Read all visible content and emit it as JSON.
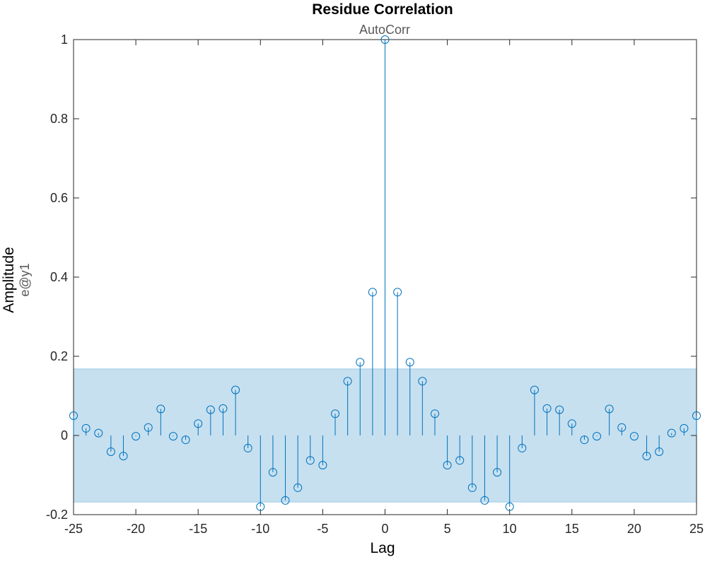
{
  "chart_data": {
    "type": "stem",
    "title": "Residue Correlation",
    "subtitle": "AutoCorr",
    "xlabel": "Lag",
    "ylabel": "Amplitude",
    "ylabel_sub": "e@y1",
    "xlim": [
      -25,
      25
    ],
    "ylim": [
      -0.2,
      1
    ],
    "xticks": [
      -25,
      -20,
      -15,
      -10,
      -5,
      0,
      5,
      10,
      15,
      20,
      25
    ],
    "xtick_labels": [
      "-25",
      "-20",
      "-15",
      "-10",
      "-5",
      "0",
      "5",
      "10",
      "15",
      "20",
      "25"
    ],
    "yticks": [
      -0.2,
      0,
      0.2,
      0.4,
      0.6,
      0.8,
      1
    ],
    "ytick_labels": [
      "-0.2",
      "0",
      "0.2",
      "0.4",
      "0.6",
      "0.8",
      "1"
    ],
    "grid": false,
    "confidence_band": [
      -0.168,
      0.168
    ],
    "colors": {
      "stem": "#0072BD",
      "band_fill": "#C6E0F0",
      "band_edge": "#9CC8E6",
      "axes": "#262626"
    },
    "series": [
      {
        "x": [
          -25,
          -24,
          -23,
          -22,
          -21,
          -20,
          -19,
          -18,
          -17,
          -16,
          -15,
          -14,
          -13,
          -12,
          -11,
          -10,
          -9,
          -8,
          -7,
          -6,
          -5,
          -4,
          -3,
          -2,
          -1,
          0,
          1,
          2,
          3,
          4,
          5,
          6,
          7,
          8,
          9,
          10,
          11,
          12,
          13,
          14,
          15,
          16,
          17,
          18,
          19,
          20,
          21,
          22,
          23,
          24,
          25
        ],
        "y": [
          0.05,
          0.018,
          0.006,
          -0.041,
          -0.052,
          -0.002,
          0.02,
          0.067,
          -0.002,
          -0.011,
          0.03,
          0.065,
          0.068,
          0.115,
          -0.032,
          -0.18,
          -0.093,
          -0.164,
          -0.132,
          -0.063,
          -0.075,
          0.055,
          0.137,
          0.185,
          0.362,
          1.0,
          0.362,
          0.185,
          0.137,
          0.055,
          -0.075,
          -0.063,
          -0.132,
          -0.164,
          -0.093,
          -0.18,
          -0.032,
          0.115,
          0.068,
          0.065,
          0.03,
          -0.011,
          -0.002,
          0.067,
          0.02,
          -0.002,
          -0.052,
          -0.041,
          0.006,
          0.018,
          0.05
        ]
      }
    ]
  }
}
